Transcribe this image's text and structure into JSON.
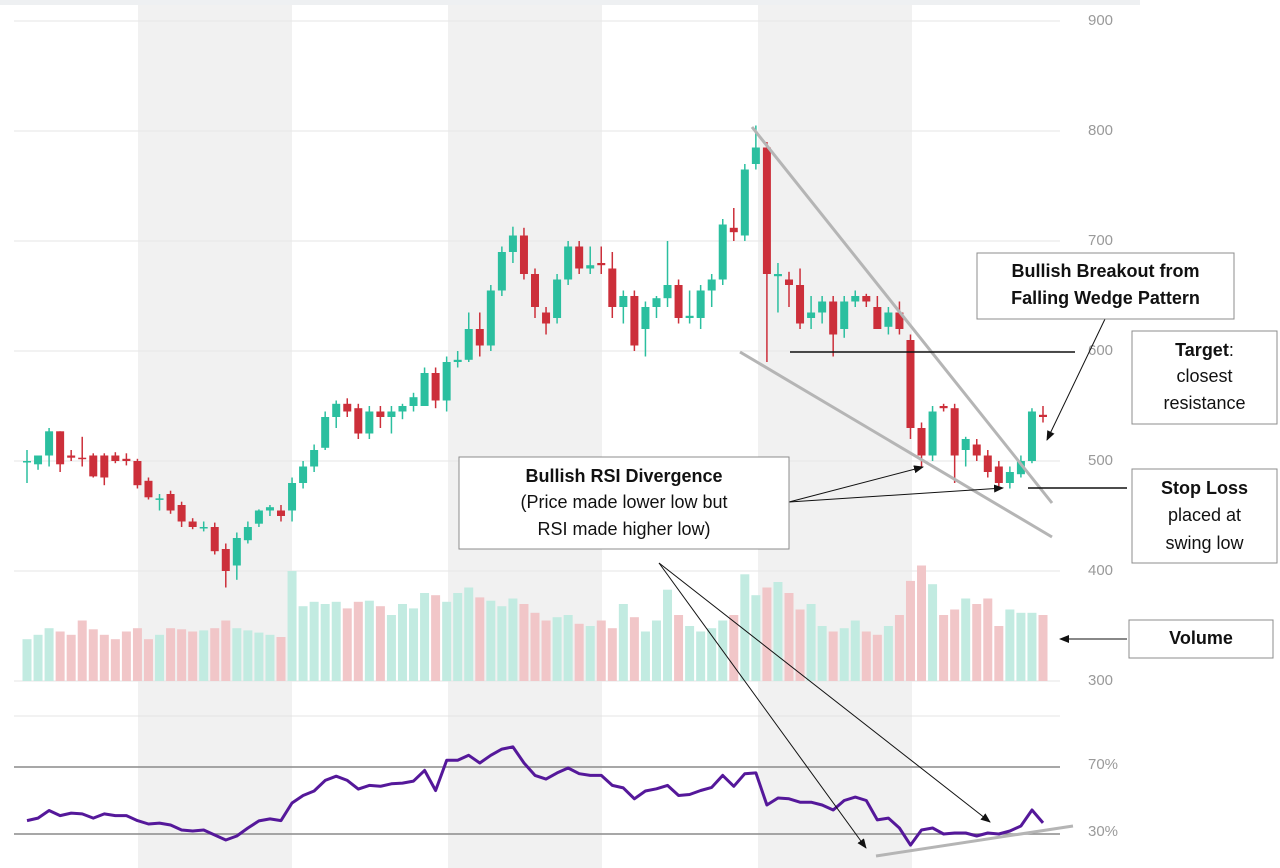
{
  "chart_data": [
    {
      "type": "candlestick",
      "ylim": [
        300,
        900
      ],
      "yticks": [
        300,
        400,
        500,
        600,
        700,
        800,
        900
      ],
      "grid": true,
      "up_color": "#2bbf9f",
      "down_color": "#cc2f3a",
      "volume_up_color": "#c2ebe1",
      "volume_down_color": "#f1c6c8",
      "volume_lim": [
        0,
        100
      ],
      "ohlc": [
        [
          500,
          510,
          480,
          500
        ],
        [
          497,
          505,
          492,
          505
        ],
        [
          505,
          530,
          495,
          527
        ],
        [
          527,
          527,
          490,
          497
        ],
        [
          505,
          510,
          500,
          503
        ],
        [
          503,
          522,
          495,
          502
        ],
        [
          505,
          507,
          485,
          486
        ],
        [
          505,
          507,
          478,
          485
        ],
        [
          505,
          508,
          498,
          500
        ],
        [
          502,
          507,
          496,
          500
        ],
        [
          500,
          502,
          475,
          478
        ],
        [
          482,
          485,
          465,
          467
        ],
        [
          466,
          470,
          455,
          466
        ],
        [
          470,
          473,
          452,
          455
        ],
        [
          460,
          463,
          440,
          445
        ],
        [
          445,
          448,
          438,
          440
        ],
        [
          440,
          445,
          436,
          440
        ],
        [
          440,
          444,
          415,
          418
        ],
        [
          420,
          425,
          385,
          400
        ],
        [
          405,
          435,
          392,
          430
        ],
        [
          428,
          445,
          425,
          440
        ],
        [
          443,
          456,
          440,
          455
        ],
        [
          455,
          460,
          450,
          458
        ],
        [
          455,
          460,
          445,
          450
        ],
        [
          455,
          485,
          445,
          480
        ],
        [
          480,
          500,
          475,
          495
        ],
        [
          495,
          515,
          490,
          510
        ],
        [
          512,
          545,
          510,
          540
        ],
        [
          540,
          555,
          530,
          552
        ],
        [
          552,
          557,
          540,
          545
        ],
        [
          548,
          552,
          520,
          525
        ],
        [
          525,
          550,
          520,
          545
        ],
        [
          545,
          550,
          530,
          540
        ],
        [
          540,
          550,
          525,
          545
        ],
        [
          545,
          552,
          538,
          550
        ],
        [
          550,
          562,
          545,
          558
        ],
        [
          550,
          585,
          550,
          580
        ],
        [
          580,
          585,
          548,
          555
        ],
        [
          555,
          595,
          545,
          590
        ],
        [
          590,
          600,
          585,
          592
        ],
        [
          592,
          635,
          590,
          620
        ],
        [
          620,
          635,
          595,
          605
        ],
        [
          605,
          660,
          600,
          655
        ],
        [
          655,
          695,
          650,
          690
        ],
        [
          690,
          713,
          680,
          705
        ],
        [
          705,
          712,
          665,
          670
        ],
        [
          670,
          675,
          630,
          640
        ],
        [
          635,
          640,
          615,
          625
        ],
        [
          630,
          670,
          625,
          665
        ],
        [
          665,
          700,
          660,
          695
        ],
        [
          695,
          700,
          670,
          675
        ],
        [
          675,
          695,
          670,
          678
        ],
        [
          680,
          695,
          670,
          678
        ],
        [
          675,
          690,
          630,
          640
        ],
        [
          640,
          655,
          625,
          650
        ],
        [
          650,
          655,
          600,
          605
        ],
        [
          620,
          645,
          595,
          640
        ],
        [
          640,
          650,
          630,
          648
        ],
        [
          648,
          700,
          640,
          660
        ],
        [
          660,
          665,
          625,
          630
        ],
        [
          630,
          655,
          625,
          632
        ],
        [
          630,
          660,
          620,
          655
        ],
        [
          655,
          670,
          640,
          665
        ],
        [
          665,
          720,
          660,
          715
        ],
        [
          712,
          730,
          700,
          708
        ],
        [
          705,
          770,
          700,
          765
        ],
        [
          770,
          805,
          765,
          785
        ],
        [
          785,
          790,
          590,
          670
        ],
        [
          668,
          680,
          635,
          670
        ],
        [
          665,
          672,
          640,
          660
        ],
        [
          660,
          675,
          620,
          625
        ],
        [
          630,
          650,
          620,
          635
        ],
        [
          635,
          650,
          625,
          645
        ],
        [
          645,
          650,
          595,
          615
        ],
        [
          620,
          650,
          612,
          645
        ],
        [
          645,
          655,
          640,
          650
        ],
        [
          650,
          652,
          640,
          645
        ],
        [
          640,
          650,
          620,
          620
        ],
        [
          622,
          640,
          615,
          635
        ],
        [
          635,
          645,
          615,
          620
        ],
        [
          610,
          615,
          520,
          530
        ],
        [
          530,
          535,
          495,
          505
        ],
        [
          505,
          550,
          500,
          545
        ],
        [
          550,
          552,
          545,
          548
        ],
        [
          548,
          552,
          480,
          505
        ],
        [
          510,
          522,
          495,
          520
        ],
        [
          515,
          520,
          500,
          505
        ],
        [
          505,
          510,
          485,
          490
        ],
        [
          495,
          500,
          475,
          480
        ],
        [
          480,
          495,
          475,
          490
        ],
        [
          488,
          505,
          485,
          500
        ],
        [
          500,
          548,
          498,
          545
        ],
        [
          542,
          550,
          535,
          540
        ]
      ],
      "volume": [
        38,
        42,
        48,
        45,
        42,
        55,
        47,
        42,
        38,
        45,
        48,
        38,
        42,
        48,
        47,
        45,
        46,
        48,
        55,
        48,
        46,
        44,
        42,
        40,
        100,
        68,
        72,
        70,
        72,
        66,
        72,
        73,
        68,
        60,
        70,
        66,
        80,
        78,
        72,
        80,
        85,
        76,
        73,
        68,
        75,
        70,
        62,
        55,
        58,
        60,
        52,
        50,
        55,
        48,
        70,
        58,
        45,
        55,
        83,
        60,
        50,
        45,
        48,
        55,
        60,
        97,
        78,
        85,
        90,
        80,
        65,
        70,
        50,
        45,
        48,
        55,
        45,
        42,
        50,
        60,
        91,
        105,
        88,
        60,
        65,
        75,
        70,
        75,
        50,
        65,
        62,
        62,
        60
      ]
    },
    {
      "type": "line",
      "color": "#55189a",
      "ylim": [
        10,
        100
      ],
      "yticks": [
        {
          "value": 30,
          "label": "30%"
        },
        {
          "value": 70,
          "label": "70%"
        }
      ],
      "values": [
        38,
        39.5,
        44,
        41,
        42.5,
        42,
        39.5,
        42,
        41,
        41,
        38,
        36,
        36.5,
        35.4,
        32.4,
        31.8,
        32.4,
        29.4,
        26.4,
        28.8,
        33.6,
        37.8,
        39,
        38,
        48.5,
        53,
        55.7,
        62,
        64.5,
        62,
        56.8,
        59,
        58.5,
        60,
        60.4,
        61.6,
        68,
        56,
        74,
        74,
        77,
        72.4,
        77,
        80.7,
        82,
        72.4,
        65,
        62.8,
        66.5,
        69.4,
        66,
        65,
        65,
        59,
        57.5,
        51,
        55.7,
        57,
        59,
        53,
        53.6,
        56,
        57.8,
        65,
        58.5,
        66,
        66.5,
        47.3,
        51.5,
        51,
        49,
        49,
        47.3,
        44.3,
        50,
        52,
        50,
        38.4,
        39.5,
        33.6,
        23.4,
        32.4,
        33.6,
        30,
        30.6,
        30.6,
        28.8,
        30.6,
        30,
        31.8,
        34.8,
        44.3,
        36.6
      ]
    }
  ],
  "annotations": [
    {
      "title": [
        "Bullish Breakout from",
        "Falling Wedge Pattern"
      ]
    },
    {
      "title": [
        "Target"
      ],
      "title_suffix": ":",
      "lines": [
        "closest",
        "resistance"
      ]
    },
    {
      "title": [
        "Stop Loss"
      ],
      "lines": [
        "placed at",
        "swing low"
      ]
    },
    {
      "title": [
        "Bullish RSI Divergence"
      ],
      "lines": [
        "(Price made lower low but",
        "RSI made higher low)"
      ]
    },
    {
      "title": [
        "Volume"
      ]
    }
  ]
}
